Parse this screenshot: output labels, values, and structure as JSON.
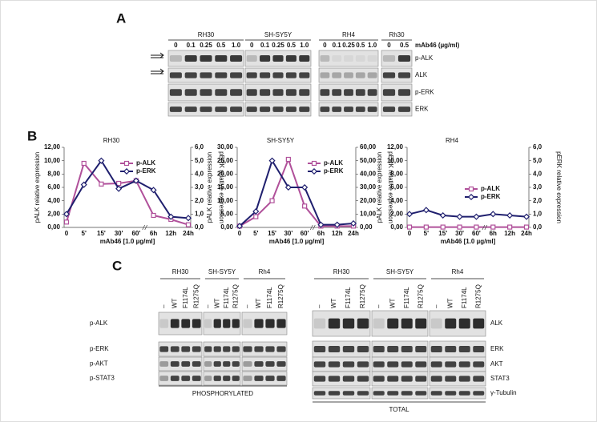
{
  "panel_a": {
    "label": "A",
    "groups": [
      {
        "name": "RH30",
        "doses": [
          "0",
          "0.1",
          "0.25",
          "0.5",
          "1.0"
        ]
      },
      {
        "name": "SH-SY5Y",
        "doses": [
          "0",
          "0.1",
          "0.25",
          "0.5",
          "1.0"
        ]
      },
      {
        "name": "RH4",
        "doses": [
          "0",
          "0.1",
          "0.25",
          "0.5",
          "1.0"
        ]
      },
      {
        "name": "Rh30",
        "doses": [
          "0",
          "0.5"
        ]
      }
    ],
    "dose_unit": "mAb46 (µg/ml)",
    "rows": [
      "p-ALK",
      "ALK",
      "p-ERK",
      "ERK"
    ]
  },
  "panel_b": {
    "label": "B"
  },
  "chart_data": [
    {
      "type": "line",
      "title": "RH30",
      "x_label": "mAb46 [1.0 µg/ml]",
      "y_label": "pALK relative expression",
      "y2_label": "pERK relative expression",
      "categories": [
        "0",
        "5'",
        "15'",
        "30'",
        "60'",
        "6h",
        "12h",
        "24h"
      ],
      "ylim": [
        0,
        12
      ],
      "yticks": [
        {
          "value": 0,
          "label": "0,00"
        },
        {
          "value": 2,
          "label": "2,00"
        },
        {
          "value": 4,
          "label": "4,00"
        },
        {
          "value": 6,
          "label": "6,00"
        },
        {
          "value": 8,
          "label": "8,00"
        },
        {
          "value": 10,
          "label": "10,00"
        },
        {
          "value": 12,
          "label": "12,00"
        }
      ],
      "y2lim": [
        0,
        6
      ],
      "y2ticks": [
        {
          "value": 0,
          "label": "0,0"
        },
        {
          "value": 1,
          "label": "1,0"
        },
        {
          "value": 2,
          "label": "2,0"
        },
        {
          "value": 3,
          "label": "3,0"
        },
        {
          "value": 4,
          "label": "4,0"
        },
        {
          "value": 5,
          "label": "5,0"
        },
        {
          "value": 6,
          "label": "6,0"
        }
      ],
      "legend": "upper center",
      "series": [
        {
          "name": "p-ALK",
          "color": "#b0509a",
          "marker": "square",
          "values": [
            0.8,
            9.6,
            6.5,
            6.6,
            7.0,
            1.8,
            1.2,
            0.4
          ]
        },
        {
          "name": "p-ERK",
          "color": "#1f1f6e",
          "marker": "diamond",
          "axis": "y2",
          "values": [
            1.0,
            3.2,
            5.0,
            2.9,
            3.5,
            2.8,
            0.8,
            0.7
          ]
        }
      ]
    },
    {
      "type": "line",
      "title": "SH-SY5Y",
      "x_label": "mAb46 [1.0 µg/ml]",
      "y_label": "pALK relative expression",
      "y2_label": "pERK relative expression",
      "categories": [
        "0",
        "5'",
        "15'",
        "30'",
        "60'",
        "6h",
        "12h",
        "24h"
      ],
      "ylim": [
        0,
        30
      ],
      "yticks": [
        {
          "value": 0,
          "label": "0,00"
        },
        {
          "value": 5,
          "label": "5,00"
        },
        {
          "value": 10,
          "label": "10,00"
        },
        {
          "value": 15,
          "label": "15,00"
        },
        {
          "value": 20,
          "label": "20,00"
        },
        {
          "value": 25,
          "label": "25,00"
        },
        {
          "value": 30,
          "label": "30,00"
        }
      ],
      "y2lim": [
        0,
        60
      ],
      "y2ticks": [
        {
          "value": 0,
          "label": "0,00"
        },
        {
          "value": 10,
          "label": "10,00"
        },
        {
          "value": 20,
          "label": "20,00"
        },
        {
          "value": 30,
          "label": "30,00"
        },
        {
          "value": 40,
          "label": "40,00"
        },
        {
          "value": 50,
          "label": "50,00"
        },
        {
          "value": 60,
          "label": "60,00"
        }
      ],
      "legend": "upper right",
      "series": [
        {
          "name": "p-ALK",
          "color": "#b0509a",
          "marker": "square",
          "values": [
            0.5,
            4,
            10,
            25.5,
            8,
            0.5,
            0.5,
            0.5
          ]
        },
        {
          "name": "p-ERK",
          "color": "#1f1f6e",
          "marker": "diamond",
          "axis": "y2",
          "values": [
            1,
            12,
            50,
            30,
            30,
            2,
            2,
            3
          ]
        }
      ]
    },
    {
      "type": "line",
      "title": "RH4",
      "x_label": "mAb46 [1.0 µg/ml]",
      "y_label": "pALK relative expression",
      "y2_label": "pERK relative expression",
      "categories": [
        "0",
        "5'",
        "15'",
        "30'",
        "60'",
        "6h",
        "12h",
        "24h"
      ],
      "ylim": [
        0,
        12
      ],
      "yticks": [
        {
          "value": 0,
          "label": "0,00"
        },
        {
          "value": 2,
          "label": "2,00"
        },
        {
          "value": 4,
          "label": "4,00"
        },
        {
          "value": 6,
          "label": "6,00"
        },
        {
          "value": 8,
          "label": "8,00"
        },
        {
          "value": 10,
          "label": "10,00"
        },
        {
          "value": 12,
          "label": "12,00"
        }
      ],
      "y2lim": [
        0,
        6
      ],
      "y2ticks": [
        {
          "value": 0,
          "label": "0,0"
        },
        {
          "value": 1,
          "label": "1,0"
        },
        {
          "value": 2,
          "label": "2,0"
        },
        {
          "value": 3,
          "label": "3,0"
        },
        {
          "value": 4,
          "label": "4,0"
        },
        {
          "value": 5,
          "label": "5,0"
        },
        {
          "value": 6,
          "label": "6,0"
        }
      ],
      "legend": "center right",
      "series": [
        {
          "name": "p-ALK",
          "color": "#b0509a",
          "marker": "square",
          "values": [
            0.05,
            0.05,
            0.05,
            0.05,
            0.05,
            0.05,
            0.05,
            0.05
          ]
        },
        {
          "name": "p-ERK",
          "color": "#1f1f6e",
          "marker": "diamond",
          "axis": "y2",
          "values": [
            1.0,
            1.3,
            0.9,
            0.8,
            0.8,
            1.0,
            0.9,
            0.8
          ]
        }
      ]
    }
  ],
  "panel_c": {
    "label": "C",
    "phosphorylated": {
      "groups": [
        {
          "name": "RH30",
          "lanes": [
            "–",
            "WT",
            "F1174L",
            "R1275Q"
          ]
        },
        {
          "name": "SH-SY5Y",
          "lanes": [
            "–",
            "WT",
            "F1174L",
            "R1275Q"
          ]
        },
        {
          "name": "Rh4",
          "lanes": [
            "–",
            "WT",
            "F1174L",
            "R1275Q"
          ]
        }
      ],
      "rows": [
        "p-ALK",
        "p-ERK",
        "p-AKT",
        "p-STAT3"
      ],
      "caption": "PHOSPHORYLATED"
    },
    "total": {
      "groups": [
        {
          "name": "RH30",
          "lanes": [
            "–",
            "WT",
            "F1174L",
            "R1275Q"
          ]
        },
        {
          "name": "SH-SY5Y",
          "lanes": [
            "–",
            "WT",
            "F1174L",
            "R1275Q"
          ]
        },
        {
          "name": "Rh4",
          "lanes": [
            "–",
            "WT",
            "F1174L",
            "R1275Q"
          ]
        }
      ],
      "rows": [
        "ALK",
        "ERK",
        "AKT",
        "STAT3",
        "γ-Tubulin"
      ],
      "caption": "TOTAL"
    }
  }
}
